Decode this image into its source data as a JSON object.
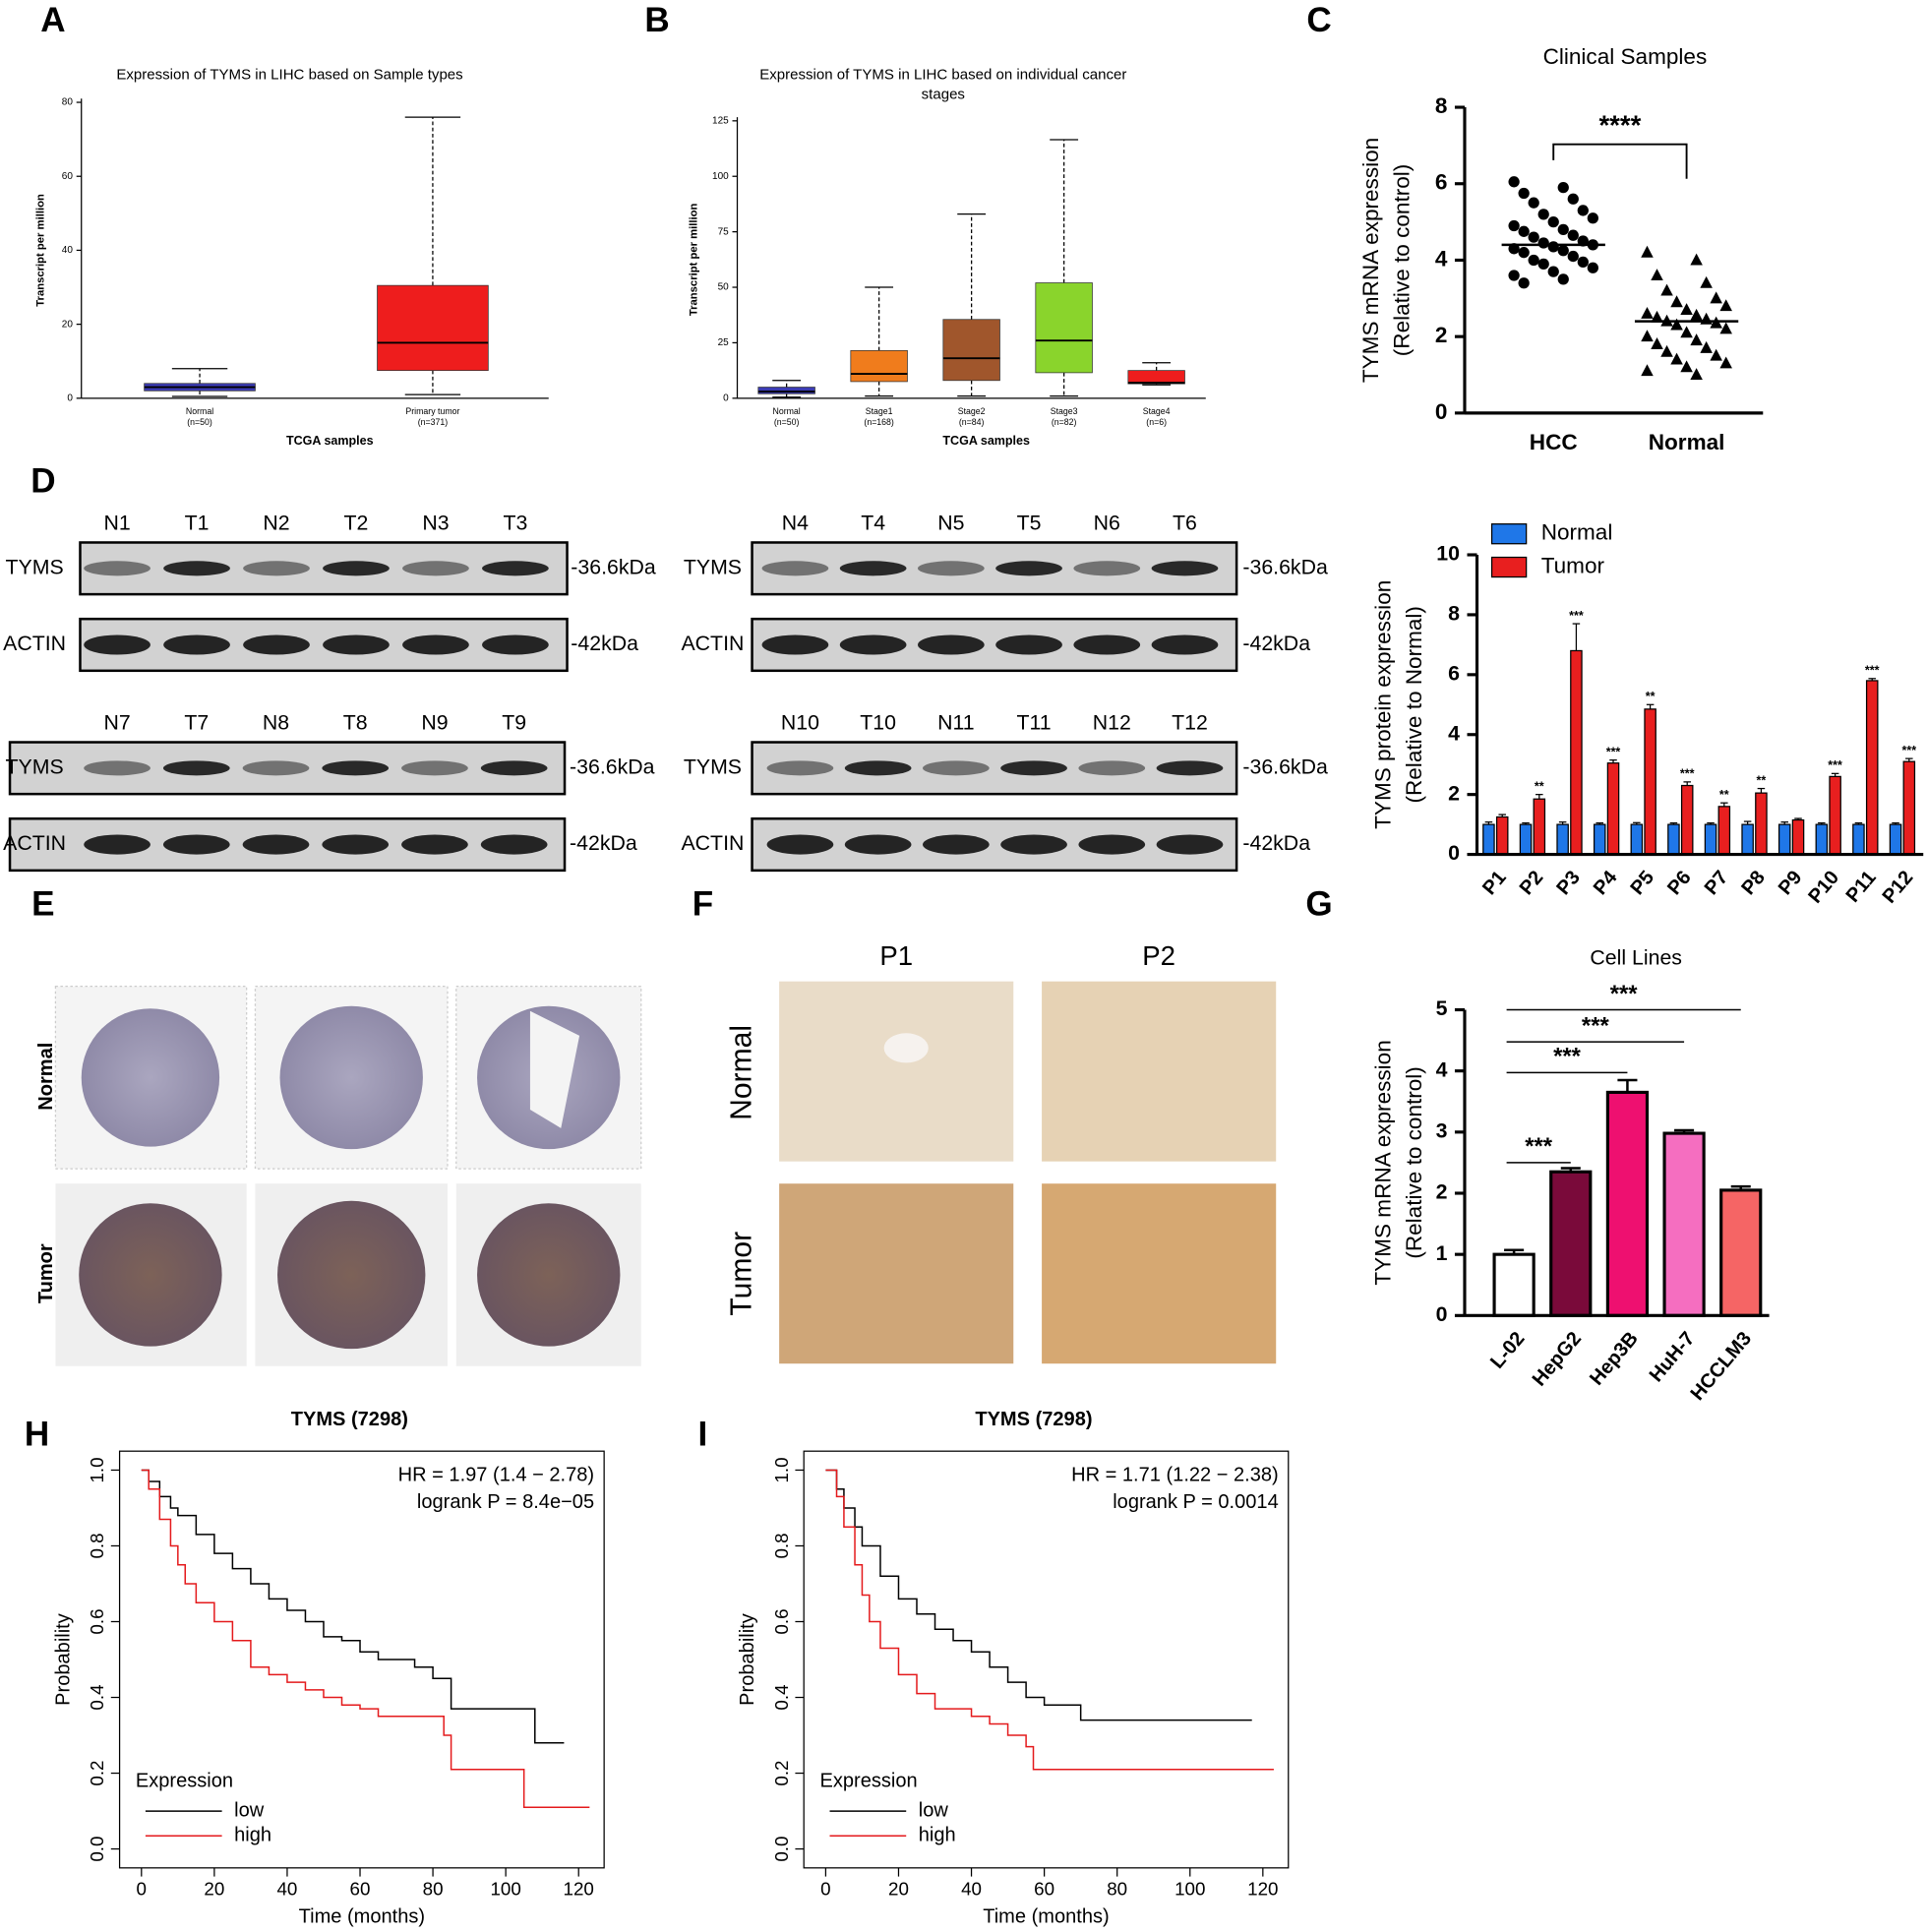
{
  "panel_letters": [
    "A",
    "B",
    "C",
    "D",
    "E",
    "F",
    "G",
    "H",
    "I"
  ],
  "chart_data": [
    {
      "type": "box",
      "title": "Expression of TYMS in LIHC based on Sample types",
      "ylabel": "Transcript per million",
      "xlabel": "TCGA samples",
      "categories": [
        "Normal",
        "Primary tumor"
      ],
      "n_labels": [
        "(n=50)",
        "(n=371)"
      ],
      "colors": [
        "#3b3bb3",
        "#ee1d1d"
      ],
      "boxes": [
        {
          "min": 0.5,
          "q1": 2,
          "median": 3,
          "q3": 4,
          "max": 8
        },
        {
          "min": 1,
          "q1": 7.5,
          "median": 15,
          "q3": 30.5,
          "max": 76
        }
      ],
      "ylim": [
        0,
        80
      ],
      "yticks": [
        0,
        20,
        40,
        60,
        80
      ]
    },
    {
      "type": "box",
      "title": [
        "Expression of TYMS in LIHC based on individual cancer",
        "stages"
      ],
      "ylabel": "Transcript per million",
      "xlabel": "TCGA samples",
      "categories": [
        "Normal",
        "Stage1",
        "Stage2",
        "Stage3",
        "Stage4"
      ],
      "n_labels": [
        "(n=50)",
        "(n=168)",
        "(n=84)",
        "(n=82)",
        "(n=6)"
      ],
      "colors": [
        "#3b3bb3",
        "#f07c1c",
        "#a0562c",
        "#8ad42c",
        "#ee1d1d"
      ],
      "boxes": [
        {
          "min": 0.5,
          "q1": 2,
          "median": 3,
          "q3": 5,
          "max": 8
        },
        {
          "min": 1,
          "q1": 7.5,
          "median": 11,
          "q3": 21.5,
          "max": 50
        },
        {
          "min": 1,
          "q1": 8,
          "median": 18,
          "q3": 35.5,
          "max": 83
        },
        {
          "min": 1,
          "q1": 11.5,
          "median": 26,
          "q3": 52,
          "max": 116.5
        },
        {
          "min": 6,
          "q1": 6.5,
          "median": 7,
          "q3": 12.5,
          "max": 16
        }
      ],
      "ylim": [
        0,
        125
      ],
      "yticks": [
        0,
        25,
        50,
        75,
        100,
        125
      ]
    },
    {
      "type": "strip",
      "title": "Clinical Samples",
      "ylabel": [
        "TYMS mRNA expression",
        "(Relative to control)"
      ],
      "categories": [
        "HCC",
        "Normal"
      ],
      "markers": [
        "circle",
        "triangle"
      ],
      "color": "#000000",
      "values": [
        [
          6.05,
          5.9,
          5.75,
          5.6,
          5.5,
          5.3,
          5.2,
          5.1,
          5.0,
          4.9,
          4.8,
          4.75,
          4.65,
          4.6,
          4.5,
          4.45,
          4.4,
          4.35,
          4.3,
          4.25,
          4.2,
          4.1,
          4.0,
          3.95,
          3.9,
          3.8,
          3.7,
          3.6,
          3.5,
          3.4
        ],
        [
          4.2,
          4.0,
          3.6,
          3.4,
          3.2,
          3.0,
          2.9,
          2.8,
          2.7,
          2.6,
          2.55,
          2.5,
          2.45,
          2.4,
          2.35,
          2.3,
          2.2,
          2.1,
          2.0,
          1.9,
          1.8,
          1.7,
          1.6,
          1.5,
          1.4,
          1.3,
          1.2,
          1.1,
          1.0
        ]
      ],
      "medians": [
        4.4,
        2.4
      ],
      "comparisons": [
        {
          "pair": [
            0,
            1
          ],
          "label": "****"
        }
      ],
      "ylim": [
        0,
        8
      ],
      "yticks": [
        0,
        2,
        4,
        6,
        8
      ]
    },
    {
      "type": "bar",
      "ylabel": [
        "TYMS protein expression",
        "(Relative to Normal)"
      ],
      "categories": [
        "P1",
        "P2",
        "P3",
        "P4",
        "P5",
        "P6",
        "P7",
        "P8",
        "P9",
        "P10",
        "P11",
        "P12"
      ],
      "series": [
        {
          "name": "Normal",
          "color": "#1f77e8",
          "values": [
            1,
            1,
            1,
            1,
            1,
            1,
            1,
            1,
            1,
            1,
            1,
            1
          ],
          "errors": [
            0.08,
            0.05,
            0.08,
            0.05,
            0.06,
            0.05,
            0.05,
            0.1,
            0.08,
            0.05,
            0.05,
            0.05
          ]
        },
        {
          "name": "Tumor",
          "color": "#e81f1f",
          "values": [
            1.25,
            1.85,
            6.8,
            3.05,
            4.85,
            2.3,
            1.6,
            2.05,
            1.15,
            2.6,
            5.8,
            3.1
          ],
          "errors": [
            0.08,
            0.15,
            0.9,
            0.1,
            0.15,
            0.12,
            0.12,
            0.15,
            0.05,
            0.1,
            0.07,
            0.1
          ],
          "annotations": [
            null,
            "**",
            "***",
            "***",
            "**",
            "***",
            "**",
            "**",
            null,
            "***",
            "***",
            "***"
          ]
        }
      ],
      "legend": "upper left",
      "ylim": [
        0,
        10
      ],
      "yticks": [
        0,
        2,
        4,
        6,
        8,
        10
      ]
    },
    {
      "type": "bar",
      "title": "Cell Lines",
      "ylabel": [
        "TYMS mRNA expression",
        "(Relative to control)"
      ],
      "categories": [
        "L-02",
        "HepG2",
        "Hep3B",
        "HuH-7",
        "HCCLM3"
      ],
      "values": [
        1.0,
        2.35,
        3.65,
        2.98,
        2.05
      ],
      "errors": [
        0.07,
        0.06,
        0.2,
        0.05,
        0.06
      ],
      "colors": [
        "#ffffff",
        "#7a0a3a",
        "#ee1070",
        "#f56ec0",
        "#f56565"
      ],
      "comparisons": [
        {
          "pair": [
            0,
            1
          ],
          "label": "***"
        },
        {
          "pair": [
            0,
            2
          ],
          "label": "***"
        },
        {
          "pair": [
            0,
            3
          ],
          "label": "***"
        },
        {
          "pair": [
            0,
            4
          ],
          "label": "***"
        }
      ],
      "ylim": [
        0,
        5
      ],
      "yticks": [
        0,
        1,
        2,
        3,
        4,
        5
      ]
    },
    {
      "type": "line",
      "drawstyle": "steps-post",
      "title": "TYMS (7298)",
      "annotations": [
        "HR = 1.97 (1.4 − 2.78)",
        "logrank P = 8.4e−05"
      ],
      "xlabel": "Time (months)",
      "ylabel": "Probability",
      "legend_title": "Expression",
      "legend": "lower left",
      "series": [
        {
          "name": "low",
          "color": "#000000",
          "x": [
            0,
            2,
            5,
            8,
            10,
            15,
            20,
            25,
            30,
            35,
            40,
            45,
            50,
            55,
            60,
            65,
            70,
            75,
            80,
            85,
            90,
            100,
            108,
            110,
            116
          ],
          "values": [
            1,
            0.97,
            0.93,
            0.9,
            0.88,
            0.83,
            0.78,
            0.74,
            0.7,
            0.66,
            0.63,
            0.6,
            0.56,
            0.55,
            0.52,
            0.5,
            0.5,
            0.48,
            0.45,
            0.37,
            0.37,
            0.37,
            0.28,
            0.28,
            0.28
          ]
        },
        {
          "name": "high",
          "color": "#e41a1c",
          "x": [
            0,
            2,
            5,
            8,
            10,
            12,
            15,
            20,
            25,
            30,
            35,
            40,
            45,
            50,
            55,
            60,
            65,
            70,
            80,
            83,
            85,
            90,
            105,
            110,
            123
          ],
          "values": [
            1,
            0.95,
            0.87,
            0.8,
            0.75,
            0.7,
            0.65,
            0.6,
            0.55,
            0.48,
            0.46,
            0.44,
            0.42,
            0.4,
            0.38,
            0.37,
            0.35,
            0.35,
            0.35,
            0.3,
            0.21,
            0.21,
            0.11,
            0.11,
            0.11
          ]
        }
      ],
      "xlim": [
        -6,
        127
      ],
      "ylim": [
        -0.05,
        1.05
      ],
      "xticks": [
        0,
        20,
        40,
        60,
        80,
        100,
        120
      ],
      "yticks": [
        {
          "value": 0,
          "label": "0.0"
        },
        0.2,
        0.4,
        0.6,
        0.8,
        {
          "value": 1,
          "label": "1.0"
        }
      ]
    },
    {
      "type": "line",
      "drawstyle": "steps-post",
      "title": "TYMS (7298)",
      "annotations": [
        "HR = 1.71 (1.22 − 2.38)",
        "logrank P = 0.0014"
      ],
      "xlabel": "Time (months)",
      "ylabel": "Probability",
      "legend_title": "Expression",
      "legend": "lower left",
      "series": [
        {
          "name": "low",
          "color": "#000000",
          "x": [
            0,
            3,
            5,
            8,
            10,
            15,
            20,
            25,
            30,
            35,
            40,
            45,
            50,
            55,
            60,
            65,
            70,
            80,
            90,
            100,
            117
          ],
          "values": [
            1,
            0.95,
            0.9,
            0.85,
            0.8,
            0.72,
            0.66,
            0.62,
            0.58,
            0.55,
            0.52,
            0.48,
            0.44,
            0.4,
            0.38,
            0.38,
            0.34,
            0.34,
            0.34,
            0.34,
            0.34
          ]
        },
        {
          "name": "high",
          "color": "#e41a1c",
          "x": [
            0,
            3,
            5,
            8,
            10,
            12,
            15,
            20,
            25,
            30,
            40,
            45,
            50,
            55,
            57,
            60,
            80,
            100,
            123
          ],
          "values": [
            1,
            0.93,
            0.85,
            0.75,
            0.67,
            0.6,
            0.53,
            0.46,
            0.41,
            0.37,
            0.35,
            0.33,
            0.3,
            0.27,
            0.21,
            0.21,
            0.21,
            0.21,
            0.21
          ]
        }
      ],
      "xlim": [
        -6,
        127
      ],
      "ylim": [
        -0.05,
        1.05
      ],
      "xticks": [
        0,
        20,
        40,
        60,
        80,
        100,
        120
      ],
      "yticks": [
        {
          "value": 0,
          "label": "0.0"
        },
        0.2,
        0.4,
        0.6,
        0.8,
        {
          "value": 1,
          "label": "1.0"
        }
      ]
    }
  ],
  "western_blot": {
    "proteins": [
      "TYMS",
      "ACTIN"
    ],
    "sizes": [
      "-36.6kDa",
      "-42kDa"
    ],
    "blots": [
      {
        "lanes": [
          "N1",
          "T1",
          "N2",
          "T2",
          "N3",
          "T3"
        ]
      },
      {
        "lanes": [
          "N4",
          "T4",
          "N5",
          "T5",
          "N6",
          "T6"
        ]
      },
      {
        "lanes": [
          "N7",
          "T7",
          "N8",
          "T8",
          "N9",
          "T9"
        ]
      },
      {
        "lanes": [
          "N10",
          "T10",
          "N11",
          "T11",
          "N12",
          "T12"
        ]
      }
    ]
  },
  "ihc_tma": {
    "rows": [
      "Normal",
      "Tumor"
    ]
  },
  "ihc_fields": {
    "columns": [
      "P1",
      "P2"
    ],
    "rows": [
      "Normal",
      "Tumor"
    ]
  }
}
